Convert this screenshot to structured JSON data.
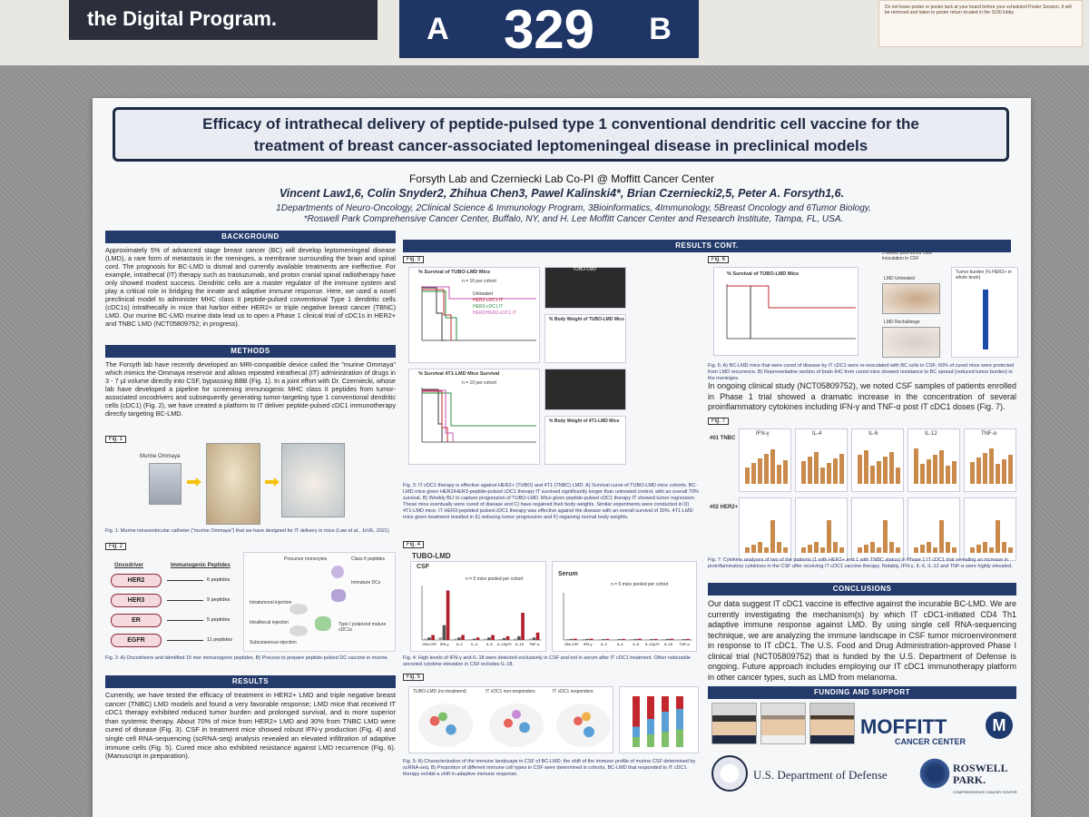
{
  "wall": {
    "banner": "the Digital Program.",
    "board_left": "A",
    "board_number": "329",
    "board_right": "B",
    "notice_text": "Do not leave poster or poster tack at your board before your scheduled Poster Session. It will be removed and taken to poster return located in the 3100 lobby."
  },
  "poster": {
    "title_line1": "Efficacy of intrathecal delivery of peptide-pulsed type 1 conventional dendritic cell vaccine for the",
    "title_line2": "treatment of breast cancer-associated leptomeningeal disease in preclinical models",
    "lab": "Forsyth Lab and Czerniecki Lab Co-PI @ Moffitt Cancer Center",
    "authors": "Vincent Law1,6, Colin Snyder2, Zhihua Chen3, Pawel Kalinski4*, Brian Czerniecki2,5, Peter A. Forsyth1,6.",
    "affil1": "1Departments of Neuro-Oncology, 2Clinical Science & Immunology Program, 3Bioinformatics, 4Immunology, 5Breast Oncology and 6Tumor Biology,",
    "affil2": "*Roswell Park Comprehensive Cancer Center, Buffalo, NY, and H. Lee Moffitt Cancer Center and Research Institute, Tampa, FL, USA."
  },
  "sections": {
    "background": "BACKGROUND",
    "methods": "METHODS",
    "results": "RESULTS",
    "results_cont": "RESULTS CONT.",
    "conclusions": "CONCLUSIONS",
    "funding": "FUNDING AND SUPPORT"
  },
  "text": {
    "background": "Approximately 5% of advanced stage breast cancer (BC) will develop leptomeningeal disease (LMD), a rare form of metastasis in the meninges, a membrane surrounding the brain and spinal cord. The prognosis for BC-LMD is dismal and currently available treatments are ineffective. For example, intrathecal (IT) therapy such as trastuzumab, and proton cranial spinal radiotherapy have only showed modest success. Dendritic cells are a master regulator of the immune system and play a critical role in bridging the innate and adaptive immune response. Here, we used a novel preclinical model to administer MHC class II peptide-pulsed conventional Type 1 dendritic cells (cDC1s) intrathecally in mice that harbor either HER2+ or triple negative breast cancer (TBNC) LMD. Our murine BC-LMD murine data lead us to open a Phase 1 clinical trial of cDC1s in HER2+ and TNBC LMD (NCT05809752; in progress).",
    "methods": "The Forsyth lab have recently developed an MRI-compatible device called the \"murine Ommaya\" which mimics the Ommaya reservoir and allows repeated intrathecal (IT) administration of drugs in 3 - 7 µl volume directly into CSF, bypassing BBB (Fig. 1). In a joint effort with Dr. Czerniecki, whose lab have developed a pipeline for screening immunogenic MHC class II peptides from tumor-associated oncodrivers and subsequently generating tumor-targeting type 1 conventional dendritic cells (cDC1) (Fig. 2), we have created a platform to IT deliver peptide-pulsed cDC1 immunotherapy directly targeting BC-LMD.",
    "results": "Currently, we have tested the efficacy of treatment in HER2+ LMD and triple negative breast cancer (TNBC) LMD models and found a very favorable response; LMD mice that received IT cDC1 therapy exhibited reduced tumor burden and prolonged survival, and is more superior than systemic therapy. About 70% of mice from HER2+ LMD and 30% from TNBC LMD were cured of disease (Fig. 3). CSF in treatment mice showed robust IFN-γ production (Fig. 4) and single cell RNA-sequencing (scRNA-seq) analysis revealed an elevated infiltration of adaptive immune cells (Fig. 5). Cured mice also exhibited resistance against LMD recurrence (Fig. 6). (Manuscript in preparation).",
    "clinical": "In ongoing clinical study (NCT05809752), we noted CSF samples of patients enrolled in Phase 1 trial showed a dramatic increase in the concentration of several proinflammatory cytokines including IFN-γ and TNF-α post IT cDC1 doses (Fig. 7).",
    "conclusions": "Our data suggest IT cDC1 vaccine is effective against the incurable BC-LMD. We are currently investigating the mechanism(s) by which IT cDC1-initiated CD4 Th1 adaptive immune response against LMD. By using single cell RNA-sequencing technique, we are analyzing the immune landscape in CSF tumor microenvironment in response to IT cDC1. The U.S. Food and Drug Administration-approved Phase I clinical trial (NCT05809752) that is funded by the U.S. Department of Defense is ongoing. Future approach includes employing our IT cDC1 immunotherapy platform in other cancer types, such as LMD from melanoma."
  },
  "figures": {
    "fig1_label": "Fig. 1",
    "fig1_ommaya": "Murine Ommaya",
    "fig1_caption": "Fig. 1: Murine intraventricular catheter (\"murine Ommaya\") that we have designed for IT delivery in mice (Law et al., JoVE, 2021)",
    "fig2_label": "Fig. 2",
    "fig2_onco_head": "Oncodriver",
    "fig2_pep_head": "Immunogenic Peptides",
    "fig2_onco": [
      {
        "name": "HER2",
        "peps": "6 peptides"
      },
      {
        "name": "HER3",
        "peps": "9 peptides"
      },
      {
        "name": "ER",
        "peps": "5 peptides"
      },
      {
        "name": "EGFR",
        "peps": "11 peptides"
      }
    ],
    "fig2_b_labels": [
      "Precursor monocytes",
      "Class II peptides",
      "Immature DCs",
      "Intratumoral injection",
      "Intrathecal injection",
      "Type I polarized mature cDC1s",
      "Subcutaneous injection"
    ],
    "fig2_caption": "Fig. 2: A) Oncodrivers and identified 15 mer immunogenic peptides. B) Process to prepare peptide-pulsed DC vaccine in murine.",
    "fig3_label": "Fig. 3",
    "fig3_a_title": "% Survival of TUBO-LMD Mice",
    "fig3_a_n": "n = 10 per cohort",
    "fig3_d_title": "% Survival 4T1-LMD Mice Survival",
    "fig3_d_n": "n = 10 per cohort",
    "fig3_legend": [
      "Untreated",
      "HER2-cDC1 IT",
      "HER3-cDC1 IT",
      "HER2/HER3-cDC1 IT"
    ],
    "fig3_b_title": "TUBO-LMD",
    "fig3_c_title": "% Body Weight of TUBO-LMD Mice",
    "fig3_f_title": "% Body Weight of 4T1-LMD Mice",
    "fig3_caption": "Fig. 3: IT cDC1 therapy is effective against HER2+ (TUBO) and 4T1 (TNBC) LMD. A) Survival curve of TUBO-LMD mice cohorts. BC-LMD mice given HER2/HER3-peptide-pulsed cDC1 therapy IT survived significantly longer than untreated control, with an overall 70% survival. B) Weekly BLI to capture progression of TUBO-LMD. Mice given peptide-pulsed cDC1 therapy IT showed tumor regression. These mice eventually were cured of disease and C) have regained their body weights. Similar experiments were conducted in D) 4T1-LMD mice. IT HER3-peptided pulsed cDC1 therapy was effective against the disease with an overall survival of 30%. 4T1-LMD mice given treatment resulted in E) reducing tumor progression and F) regaining normal body weights.",
    "fig4_label": "Fig. 4",
    "fig4_title": "TUBO-LMD",
    "fig4_csf": "CSF",
    "fig4_serum": "Serum",
    "fig4_n": "n = 5 mice pooled per cohort",
    "fig4_legend": [
      "Healthy",
      "LMD",
      "LMD + cDC1 IT"
    ],
    "fig4_caption": "Fig. 4: High levels of IFN-γ and IL-18 were detected exclusively in CSF and not in serum after IT cDC1 treatment. Other noticeable secreted cytokine elevation in CSF includes IL-18.",
    "fig5_label": "Fig. 5",
    "fig5_panels": [
      "TUBO-LMD (no treatment)",
      "IT cDC1 non-responders",
      "IT cDC1 responders"
    ],
    "fig5_caption": "Fig. 5: A) Characterization of the immune landscape in CSF of BC-LMD; the shift of the immune profile of murine CSF determined by scRNA-seq. B) Proportion of different immune cell types in CSF were determined in cohorts. BC-LMD that responded to IT cDC1 therapy exhibit a shift in adaptive immune response.",
    "fig6_label": "Fig. 6",
    "fig6_title": "% Survival of TUBO-LMD Mice",
    "fig6_inset": "3 weeks post-tumor cells inoculation in CSF",
    "fig6_lmd_untreated": "LMD Untreated",
    "fig6_lmd_rechallenge": "LMD Rechallenge",
    "fig6_tumor_burden": "Tumor burden (% HER2+ in whole brain)",
    "fig6_caption": "Fig. 6: A) BC-LMD mice that were cured of disease by IT cDC1 were re-inoculated with BC cells in CSF; 60% of cured mice were protected from LMD recurrence. B) Representative section of brain IHC from cured mice showed resistance to BC spread (reduced tumor burden) in the meninges.",
    "fig7_label": "Fig. 7",
    "fig7_cols": [
      "IFN-γ",
      "IL-4",
      "IL-6",
      "IL-12",
      "TNF-α"
    ],
    "fig7_rows": [
      "#01 TNBC",
      "#02 HER2+"
    ],
    "fig7_caption": "Fig. 7: Cytokine analyses of two of the patients (1 with HER2+ and 1 with TNBC status) in Phase 1 IT cDC1 trial revealing an increase in proinflammatory cytokines in the CSF after receiving IT cDC1 vaccine therapy. Notably, IFN-γ, IL-6, IL-12 and TNF-α were highly elevated."
  },
  "funding": {
    "moffitt": "MOFFITT",
    "moffitt_sub": "CANCER CENTER",
    "dod": "U.S. Department of Defense",
    "roswell": "ROSWELL PARK.",
    "roswell_sub": "COMPREHENSIVE CANCER CENTER"
  },
  "colors": {
    "navy": "#233a6b",
    "untreated": "#333333",
    "her2": "#c0282d",
    "her3": "#2e8b3e",
    "her2her3": "#c45ab3",
    "csf_bar": "#b01f2a",
    "fig7_bar": "#c98a4b"
  },
  "chart_data": [
    {
      "type": "bar",
      "title": "CSF",
      "categories": [
        "GM-CSF",
        "IFN-γ",
        "IL-2",
        "IL-4",
        "IL-6",
        "IL-12p70",
        "IL-18",
        "TNF-α"
      ],
      "series": [
        {
          "name": "Healthy",
          "values": [
            0.5,
            1,
            0.5,
            0.3,
            0.5,
            0.4,
            0.6,
            0.5
          ]
        },
        {
          "name": "LMD",
          "values": [
            1,
            6,
            1,
            0.5,
            1,
            0.8,
            1.5,
            1
          ]
        },
        {
          "name": "LMD + cDC1 IT",
          "values": [
            2,
            20,
            2,
            1,
            2,
            1.5,
            11,
            3
          ]
        }
      ],
      "ylim": [
        0,
        22
      ]
    },
    {
      "type": "bar",
      "title": "Serum",
      "categories": [
        "GM-CSF",
        "IFN-γ",
        "IL-2",
        "IL-4",
        "IL-6",
        "IL-12p70",
        "IL-18",
        "TNF-α"
      ],
      "series": [
        {
          "name": "Healthy",
          "values": [
            0.4,
            0.4,
            0.3,
            0.3,
            0.4,
            0.3,
            0.4,
            0.3
          ]
        },
        {
          "name": "LMD",
          "values": [
            0.5,
            0.5,
            0.4,
            0.4,
            0.5,
            0.4,
            0.5,
            0.4
          ]
        },
        {
          "name": "LMD + cDC1 IT",
          "values": [
            0.6,
            0.6,
            0.5,
            0.5,
            0.6,
            0.5,
            0.6,
            0.5
          ]
        }
      ],
      "ylim": [
        0,
        22
      ]
    }
  ]
}
